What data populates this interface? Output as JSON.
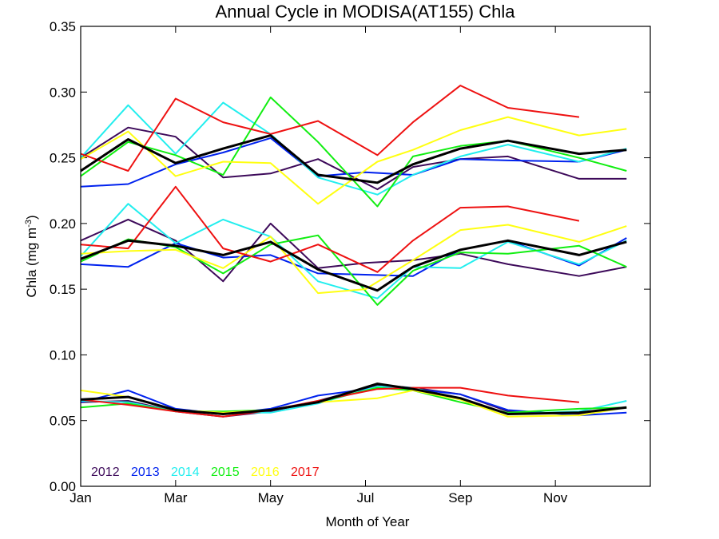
{
  "chart_data": {
    "type": "line",
    "title": "Annual Cycle in MODISA(AT155) Chla",
    "xlabel": "Month of Year",
    "ylabel_main": "Chla (mg m",
    "ylabel_sup": "-3",
    "ylabel_close": ")",
    "xlim": [
      0,
      12
    ],
    "ylim": [
      0.0,
      0.35
    ],
    "x_ticks": [
      {
        "value": 0,
        "label": "Jan"
      },
      {
        "value": 2,
        "label": "Mar"
      },
      {
        "value": 4,
        "label": "May"
      },
      {
        "value": 6,
        "label": "Jul"
      },
      {
        "value": 8,
        "label": "Sep"
      },
      {
        "value": 10,
        "label": "Nov"
      }
    ],
    "y_ticks": [
      {
        "value": 0.0,
        "label": "0.00"
      },
      {
        "value": 0.05,
        "label": "0.05"
      },
      {
        "value": 0.1,
        "label": "0.10"
      },
      {
        "value": 0.15,
        "label": "0.15"
      },
      {
        "value": 0.2,
        "label": "0.20"
      },
      {
        "value": 0.25,
        "label": "0.25"
      },
      {
        "value": 0.3,
        "label": "0.30"
      },
      {
        "value": 0.35,
        "label": "0.35"
      }
    ],
    "grid": false,
    "legend": {
      "placement": "bottom-left"
    },
    "series": [
      {
        "name": "2012",
        "color": "#3d0a5a",
        "upper": [
          [
            0,
            0.25
          ],
          [
            1,
            0.273
          ],
          [
            2,
            0.266
          ],
          [
            3,
            0.235
          ],
          [
            4,
            0.238
          ],
          [
            5,
            0.249
          ],
          [
            6.25,
            0.226
          ],
          [
            7,
            0.243
          ],
          [
            8,
            0.249
          ],
          [
            9,
            0.251
          ],
          [
            10.5,
            0.234
          ],
          [
            11.5,
            0.234
          ]
        ],
        "middle": [
          [
            0,
            0.187
          ],
          [
            1,
            0.203
          ],
          [
            2,
            0.187
          ],
          [
            3,
            0.156
          ],
          [
            4,
            0.2
          ],
          [
            5,
            0.166
          ],
          [
            6,
            0.17
          ],
          [
            7,
            0.172
          ],
          [
            8,
            0.177
          ],
          [
            9,
            0.169
          ],
          [
            10.5,
            0.16
          ],
          [
            11.5,
            0.167
          ]
        ],
        "lower": [
          [
            0,
            0.064
          ],
          [
            1,
            0.065
          ],
          [
            2,
            0.057
          ],
          [
            3,
            0.053
          ],
          [
            4,
            0.057
          ],
          [
            5,
            0.065
          ],
          [
            6.25,
            0.077
          ],
          [
            7,
            0.075
          ],
          [
            8,
            0.07
          ],
          [
            9,
            0.057
          ],
          [
            10.5,
            0.055
          ],
          [
            11.5,
            0.06
          ]
        ]
      },
      {
        "name": "2013",
        "color": "#0022ee",
        "upper": [
          [
            0,
            0.228
          ],
          [
            1,
            0.23
          ],
          [
            2,
            0.245
          ],
          [
            3,
            0.254
          ],
          [
            4,
            0.265
          ],
          [
            5,
            0.236
          ],
          [
            6,
            0.239
          ],
          [
            7,
            0.237
          ],
          [
            8,
            0.249
          ],
          [
            9,
            0.248
          ],
          [
            10.5,
            0.247
          ],
          [
            11.5,
            0.256
          ]
        ],
        "middle": [
          [
            0,
            0.169
          ],
          [
            1,
            0.167
          ],
          [
            2,
            0.185
          ],
          [
            3,
            0.174
          ],
          [
            4,
            0.176
          ],
          [
            5,
            0.162
          ],
          [
            6,
            0.161
          ],
          [
            7,
            0.16
          ],
          [
            8,
            0.18
          ],
          [
            9,
            0.187
          ],
          [
            10.5,
            0.168
          ],
          [
            11.5,
            0.189
          ]
        ],
        "lower": [
          [
            0,
            0.064
          ],
          [
            1,
            0.073
          ],
          [
            2,
            0.059
          ],
          [
            3,
            0.055
          ],
          [
            4,
            0.059
          ],
          [
            5,
            0.069
          ],
          [
            6.25,
            0.075
          ],
          [
            7,
            0.074
          ],
          [
            8,
            0.07
          ],
          [
            9,
            0.058
          ],
          [
            10.5,
            0.054
          ],
          [
            11.5,
            0.056
          ]
        ]
      },
      {
        "name": "2014",
        "color": "#22eeee",
        "upper": [
          [
            0,
            0.25
          ],
          [
            1,
            0.29
          ],
          [
            2,
            0.253
          ],
          [
            3,
            0.292
          ],
          [
            4,
            0.268
          ],
          [
            5,
            0.235
          ],
          [
            6.25,
            0.222
          ],
          [
            7,
            0.237
          ],
          [
            8,
            0.251
          ],
          [
            9,
            0.26
          ],
          [
            10.5,
            0.247
          ],
          [
            11.5,
            0.257
          ]
        ],
        "middle": [
          [
            0,
            0.175
          ],
          [
            1,
            0.215
          ],
          [
            2,
            0.185
          ],
          [
            3,
            0.203
          ],
          [
            4,
            0.19
          ],
          [
            5,
            0.156
          ],
          [
            6.25,
            0.143
          ],
          [
            7,
            0.167
          ],
          [
            8,
            0.166
          ],
          [
            9,
            0.186
          ],
          [
            10.5,
            0.169
          ],
          [
            11.5,
            0.187
          ]
        ],
        "lower": [
          [
            0,
            0.065
          ],
          [
            1,
            0.064
          ],
          [
            2,
            0.057
          ],
          [
            3,
            0.056
          ],
          [
            4,
            0.056
          ],
          [
            5,
            0.063
          ],
          [
            6.25,
            0.076
          ],
          [
            7,
            0.075
          ],
          [
            8,
            0.066
          ],
          [
            9,
            0.055
          ],
          [
            10.5,
            0.057
          ],
          [
            11.5,
            0.065
          ]
        ]
      },
      {
        "name": "2015",
        "color": "#11ee11",
        "upper": [
          [
            0,
            0.236
          ],
          [
            1,
            0.262
          ],
          [
            2,
            0.252
          ],
          [
            3,
            0.237
          ],
          [
            4,
            0.296
          ],
          [
            5,
            0.262
          ],
          [
            6.25,
            0.213
          ],
          [
            7,
            0.251
          ],
          [
            8,
            0.259
          ],
          [
            9,
            0.263
          ],
          [
            10.5,
            0.25
          ],
          [
            11.5,
            0.24
          ]
        ],
        "middle": [
          [
            0,
            0.171
          ],
          [
            1,
            0.188
          ],
          [
            2,
            0.182
          ],
          [
            3,
            0.162
          ],
          [
            4,
            0.184
          ],
          [
            5,
            0.191
          ],
          [
            6.25,
            0.138
          ],
          [
            7,
            0.164
          ],
          [
            8,
            0.178
          ],
          [
            9,
            0.177
          ],
          [
            10.5,
            0.183
          ],
          [
            11.5,
            0.167
          ]
        ],
        "lower": [
          [
            0,
            0.06
          ],
          [
            1,
            0.063
          ],
          [
            2,
            0.057
          ],
          [
            3,
            0.057
          ],
          [
            4,
            0.058
          ],
          [
            5,
            0.064
          ],
          [
            6.25,
            0.075
          ],
          [
            7,
            0.073
          ],
          [
            8,
            0.064
          ],
          [
            9,
            0.056
          ],
          [
            10.5,
            0.059
          ],
          [
            11.5,
            0.06
          ]
        ]
      },
      {
        "name": "2016",
        "color": "#ffff11",
        "upper": [
          [
            0,
            0.249
          ],
          [
            1,
            0.27
          ],
          [
            2,
            0.236
          ],
          [
            3,
            0.247
          ],
          [
            4,
            0.246
          ],
          [
            5,
            0.215
          ],
          [
            6.25,
            0.247
          ],
          [
            7,
            0.256
          ],
          [
            8,
            0.271
          ],
          [
            9,
            0.281
          ],
          [
            10.5,
            0.267
          ],
          [
            11.5,
            0.272
          ]
        ],
        "middle": [
          [
            0,
            0.177
          ],
          [
            1,
            0.179
          ],
          [
            2,
            0.18
          ],
          [
            3,
            0.166
          ],
          [
            4,
            0.19
          ],
          [
            5,
            0.147
          ],
          [
            6,
            0.15
          ],
          [
            7,
            0.172
          ],
          [
            8,
            0.195
          ],
          [
            9,
            0.199
          ],
          [
            10.5,
            0.186
          ],
          [
            11.5,
            0.198
          ]
        ],
        "lower": [
          [
            0,
            0.073
          ],
          [
            1,
            0.068
          ],
          [
            2,
            0.058
          ],
          [
            3,
            0.056
          ],
          [
            4,
            0.058
          ],
          [
            5,
            0.064
          ],
          [
            6.25,
            0.067
          ],
          [
            7,
            0.073
          ],
          [
            8,
            0.066
          ],
          [
            9,
            0.053
          ],
          [
            10.5,
            0.054
          ],
          [
            11.5,
            0.06
          ]
        ]
      },
      {
        "name": "2017",
        "color": "#ee1111",
        "upper": [
          [
            0,
            0.253
          ],
          [
            1,
            0.24
          ],
          [
            2,
            0.295
          ],
          [
            3,
            0.277
          ],
          [
            4,
            0.268
          ],
          [
            5,
            0.278
          ],
          [
            6.25,
            0.252
          ],
          [
            7,
            0.277
          ],
          [
            8,
            0.305
          ],
          [
            9,
            0.288
          ],
          [
            10.5,
            0.281
          ]
        ],
        "middle": [
          [
            0,
            0.184
          ],
          [
            1,
            0.181
          ],
          [
            2,
            0.228
          ],
          [
            3,
            0.181
          ],
          [
            4,
            0.171
          ],
          [
            5,
            0.184
          ],
          [
            6.25,
            0.163
          ],
          [
            7,
            0.187
          ],
          [
            8,
            0.212
          ],
          [
            9,
            0.213
          ],
          [
            10.5,
            0.202
          ]
        ],
        "lower": [
          [
            0,
            0.066
          ],
          [
            1,
            0.062
          ],
          [
            2,
            0.057
          ],
          [
            3,
            0.053
          ],
          [
            4,
            0.058
          ],
          [
            5,
            0.065
          ],
          [
            6.25,
            0.074
          ],
          [
            7,
            0.075
          ],
          [
            8,
            0.075
          ],
          [
            9,
            0.069
          ],
          [
            10.5,
            0.064
          ]
        ]
      },
      {
        "name": "",
        "color": "#000000",
        "mean": true,
        "upper": [
          [
            0,
            0.24
          ],
          [
            1,
            0.264
          ],
          [
            2,
            0.246
          ],
          [
            3,
            0.257
          ],
          [
            4,
            0.267
          ],
          [
            5,
            0.237
          ],
          [
            6.25,
            0.231
          ],
          [
            7,
            0.245
          ],
          [
            8,
            0.257
          ],
          [
            9,
            0.263
          ],
          [
            10.5,
            0.253
          ],
          [
            11.5,
            0.256
          ]
        ],
        "middle": [
          [
            0,
            0.173
          ],
          [
            1,
            0.187
          ],
          [
            2,
            0.183
          ],
          [
            3,
            0.176
          ],
          [
            4,
            0.186
          ],
          [
            5,
            0.165
          ],
          [
            6.25,
            0.149
          ],
          [
            7,
            0.167
          ],
          [
            8,
            0.18
          ],
          [
            9,
            0.187
          ],
          [
            10.5,
            0.176
          ],
          [
            11.5,
            0.186
          ]
        ],
        "lower": [
          [
            0,
            0.066
          ],
          [
            1,
            0.068
          ],
          [
            2,
            0.058
          ],
          [
            3,
            0.055
          ],
          [
            4,
            0.058
          ],
          [
            5,
            0.064
          ],
          [
            6.25,
            0.078
          ],
          [
            7,
            0.074
          ],
          [
            8,
            0.067
          ],
          [
            9,
            0.055
          ],
          [
            10.5,
            0.056
          ],
          [
            11.5,
            0.06
          ]
        ]
      }
    ]
  }
}
